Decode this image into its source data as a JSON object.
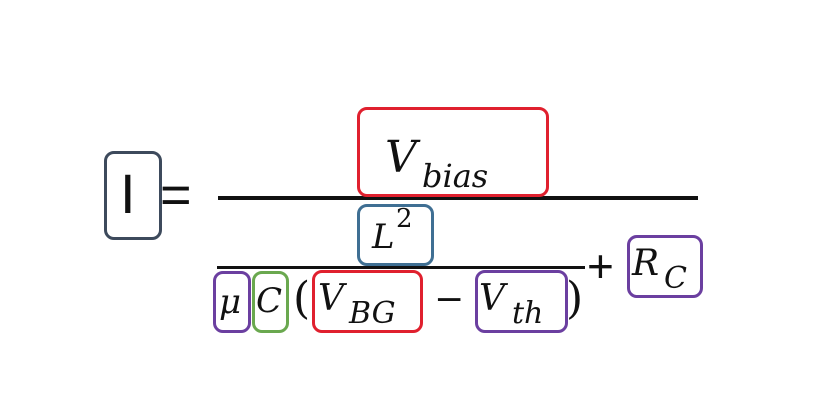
{
  "equation": {
    "lhs": "I",
    "equals": "=",
    "numerator": {
      "base": "V",
      "sub": "bias"
    },
    "inner_numerator": {
      "base": "L",
      "sup": "2"
    },
    "mu": "μ",
    "c": "C",
    "open_paren": "(",
    "v_bg": {
      "base": "V",
      "sub": "BG"
    },
    "minus": "−",
    "v_th": {
      "base": "V",
      "sub": "th"
    },
    "close_paren": ")",
    "plus": "+",
    "r_c": {
      "base": "R",
      "sub": "C"
    }
  },
  "colors": {
    "slate": "#3d4a5c",
    "red": "#e0202e",
    "blue": "#3f6f93",
    "purple": "#6b3fa0",
    "green": "#6aa84f",
    "text": "#111111"
  }
}
